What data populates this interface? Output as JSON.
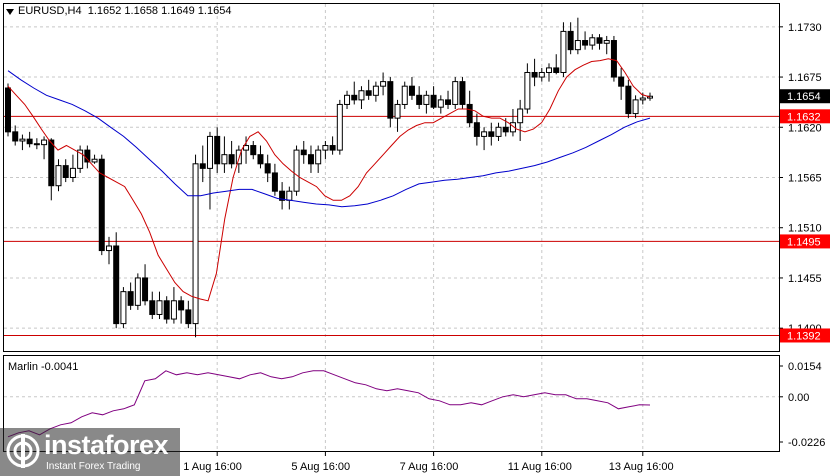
{
  "header": {
    "symbol_label": "EURUSD,H4",
    "ohlc": "1.1652 1.1658 1.1649 1.1654"
  },
  "indicator": {
    "label": "Marlin -0.0041"
  },
  "price_axis_ticks": [
    "1.1730",
    "1.1675",
    "1.1620",
    "1.1565",
    "1.1510",
    "1.1455",
    "1.1400"
  ],
  "indicator_axis_ticks": [
    "0.0154",
    "0.00",
    "-0.0226"
  ],
  "time_labels": [
    "1 Aug 16:00",
    "5 Aug 16:00",
    "7 Aug 16:00",
    "11 Aug 16:00",
    "13 Aug 16:00"
  ],
  "level_tags": {
    "current": "1.1654",
    "l1632": "1.1632",
    "l1495": "1.1495",
    "l1392": "1.1392"
  },
  "watermark": {
    "name": "instaforex",
    "tagline": "Instant Forex Trading"
  },
  "colors": {
    "level_line": "#cc0000",
    "level_tag_bg": "#ff0000",
    "current_tag_bg": "#000000",
    "slow_ma": "#0000cc",
    "fast_ma": "#cc0000",
    "oscillator": "#800080",
    "grid": "#c8c8c8"
  },
  "chart_data": [
    {
      "type": "candlestick",
      "symbol": "EURUSD",
      "timeframe": "H4",
      "ylim": [
        1.1375,
        1.1755
      ],
      "horizontal_levels": [
        1.1632,
        1.1495,
        1.1392
      ],
      "last_price": 1.1654,
      "candles": [
        [
          1.1663,
          1.1668,
          1.161,
          1.1615
        ],
        [
          1.1615,
          1.1622,
          1.16,
          1.1605
        ],
        [
          1.1605,
          1.1612,
          1.1595,
          1.1607
        ],
        [
          1.1607,
          1.1615,
          1.1598,
          1.1602
        ],
        [
          1.1602,
          1.1608,
          1.1596,
          1.1601
        ],
        [
          1.1601,
          1.161,
          1.1585,
          1.1606
        ],
        [
          1.1606,
          1.1608,
          1.154,
          1.1556
        ],
        [
          1.1556,
          1.1585,
          1.155,
          1.1578
        ],
        [
          1.1578,
          1.1585,
          1.156,
          1.1565
        ],
        [
          1.1565,
          1.159,
          1.156,
          1.1575
        ],
        [
          1.1575,
          1.16,
          1.157,
          1.1595
        ],
        [
          1.1595,
          1.16,
          1.1575,
          1.1582
        ],
        [
          1.1582,
          1.159,
          1.158,
          1.1585
        ],
        [
          1.1585,
          1.159,
          1.148,
          1.1485
        ],
        [
          1.1485,
          1.15,
          1.147,
          1.149
        ],
        [
          1.149,
          1.1505,
          1.14,
          1.1405
        ],
        [
          1.1405,
          1.1445,
          1.14,
          1.144
        ],
        [
          1.144,
          1.145,
          1.142,
          1.1425
        ],
        [
          1.1425,
          1.146,
          1.142,
          1.1455
        ],
        [
          1.1455,
          1.147,
          1.1425,
          1.143
        ],
        [
          1.143,
          1.144,
          1.141,
          1.1415
        ],
        [
          1.1415,
          1.144,
          1.141,
          1.143
        ],
        [
          1.143,
          1.1435,
          1.1405,
          1.141
        ],
        [
          1.141,
          1.1445,
          1.1405,
          1.143
        ],
        [
          1.143,
          1.1435,
          1.1405,
          1.142
        ],
        [
          1.142,
          1.143,
          1.14,
          1.1405
        ],
        [
          1.1405,
          1.159,
          1.139,
          1.158
        ],
        [
          1.158,
          1.16,
          1.156,
          1.1575
        ],
        [
          1.1575,
          1.1615,
          1.153,
          1.161
        ],
        [
          1.161,
          1.162,
          1.157,
          1.158
        ],
        [
          1.158,
          1.161,
          1.157,
          1.159
        ],
        [
          1.159,
          1.1605,
          1.1575,
          1.158
        ],
        [
          1.158,
          1.16,
          1.157,
          1.1595
        ],
        [
          1.1595,
          1.161,
          1.158,
          1.16
        ],
        [
          1.16,
          1.1605,
          1.1585,
          1.159
        ],
        [
          1.159,
          1.16,
          1.1575,
          1.158
        ],
        [
          1.158,
          1.159,
          1.156,
          1.157
        ],
        [
          1.157,
          1.158,
          1.1545,
          1.155
        ],
        [
          1.155,
          1.156,
          1.153,
          1.154
        ],
        [
          1.154,
          1.1555,
          1.153,
          1.155
        ],
        [
          1.155,
          1.16,
          1.1545,
          1.1595
        ],
        [
          1.1595,
          1.1605,
          1.158,
          1.159
        ],
        [
          1.159,
          1.16,
          1.157,
          1.158
        ],
        [
          1.158,
          1.16,
          1.157,
          1.1595
        ],
        [
          1.1595,
          1.1605,
          1.1585,
          1.16
        ],
        [
          1.16,
          1.161,
          1.159,
          1.1595
        ],
        [
          1.1595,
          1.165,
          1.159,
          1.1645
        ],
        [
          1.1645,
          1.166,
          1.164,
          1.1655
        ],
        [
          1.1655,
          1.167,
          1.1645,
          1.165
        ],
        [
          1.165,
          1.1665,
          1.164,
          1.166
        ],
        [
          1.166,
          1.1672,
          1.165,
          1.1655
        ],
        [
          1.1655,
          1.167,
          1.1648,
          1.1665
        ],
        [
          1.1665,
          1.168,
          1.1655,
          1.167
        ],
        [
          1.167,
          1.1675,
          1.162,
          1.163
        ],
        [
          1.163,
          1.165,
          1.1615,
          1.1645
        ],
        [
          1.1645,
          1.167,
          1.164,
          1.1665
        ],
        [
          1.1665,
          1.1675,
          1.165,
          1.1655
        ],
        [
          1.1655,
          1.1665,
          1.164,
          1.1645
        ],
        [
          1.1645,
          1.166,
          1.1635,
          1.1655
        ],
        [
          1.1655,
          1.1665,
          1.164,
          1.1642
        ],
        [
          1.1642,
          1.1655,
          1.1635,
          1.165
        ],
        [
          1.165,
          1.166,
          1.164,
          1.1645
        ],
        [
          1.1645,
          1.1675,
          1.164,
          1.167
        ],
        [
          1.167,
          1.1675,
          1.164,
          1.1645
        ],
        [
          1.1645,
          1.166,
          1.162,
          1.1625
        ],
        [
          1.1625,
          1.1635,
          1.16,
          1.161
        ],
        [
          1.161,
          1.162,
          1.1595,
          1.1615
        ],
        [
          1.1615,
          1.1625,
          1.16,
          1.161
        ],
        [
          1.161,
          1.1625,
          1.1605,
          1.162
        ],
        [
          1.162,
          1.163,
          1.161,
          1.1615
        ],
        [
          1.1615,
          1.164,
          1.161,
          1.1625
        ],
        [
          1.1625,
          1.165,
          1.1605,
          1.164
        ],
        [
          1.164,
          1.169,
          1.1635,
          1.168
        ],
        [
          1.168,
          1.1695,
          1.1665,
          1.1675
        ],
        [
          1.1675,
          1.1685,
          1.167,
          1.168
        ],
        [
          1.168,
          1.169,
          1.167,
          1.1685
        ],
        [
          1.1685,
          1.17,
          1.1678,
          1.168
        ],
        [
          1.168,
          1.1735,
          1.1675,
          1.1725
        ],
        [
          1.1725,
          1.1735,
          1.17,
          1.1705
        ],
        [
          1.1705,
          1.174,
          1.17,
          1.1715
        ],
        [
          1.1715,
          1.1725,
          1.1705,
          1.171
        ],
        [
          1.171,
          1.1722,
          1.1705,
          1.1718
        ],
        [
          1.1718,
          1.1722,
          1.1705,
          1.1712
        ],
        [
          1.1712,
          1.172,
          1.17,
          1.1715
        ],
        [
          1.1715,
          1.172,
          1.167,
          1.1675
        ],
        [
          1.1675,
          1.1685,
          1.165,
          1.1665
        ],
        [
          1.1665,
          1.1672,
          1.163,
          1.1635
        ],
        [
          1.1635,
          1.1655,
          1.163,
          1.165
        ],
        [
          1.165,
          1.1658,
          1.1645,
          1.1652
        ],
        [
          1.1652,
          1.1658,
          1.1649,
          1.1654
        ]
      ],
      "ma_fast": [
        1.1665,
        1.1655,
        1.1645,
        1.1632,
        1.1618,
        1.1605,
        1.1595,
        1.16,
        1.1595,
        1.159,
        1.158,
        1.157,
        1.1565,
        1.156,
        1.1555,
        1.154,
        1.1525,
        1.1505,
        1.148,
        1.1465,
        1.145,
        1.144,
        1.1435,
        1.1432,
        1.143,
        1.146,
        1.152,
        1.1565,
        1.1595,
        1.161,
        1.1615,
        1.1605,
        1.159,
        1.158,
        1.1572,
        1.1565,
        1.156,
        1.1555,
        1.1545,
        1.154,
        1.154,
        1.1545,
        1.1555,
        1.157,
        1.158,
        1.159,
        1.16,
        1.161,
        1.1617,
        1.1622,
        1.1625,
        1.1625,
        1.163,
        1.1635,
        1.164,
        1.164,
        1.1638,
        1.1632,
        1.163,
        1.163,
        1.1625,
        1.1618,
        1.1615,
        1.1618,
        1.1625,
        1.164,
        1.166,
        1.1675,
        1.1683,
        1.1688,
        1.1692,
        1.1693,
        1.1695,
        1.1693,
        1.168,
        1.1665,
        1.1656,
        1.1653
      ],
      "ma_slow": [
        1.1682,
        1.1672,
        1.1663,
        1.1655,
        1.165,
        1.1645,
        1.1638,
        1.163,
        1.162,
        1.161,
        1.1598,
        1.1585,
        1.1572,
        1.1558,
        1.1545,
        1.1545,
        1.1548,
        1.155,
        1.1552,
        1.1552,
        1.1547,
        1.1542,
        1.154,
        1.1538,
        1.1536,
        1.1535,
        1.1533,
        1.1534,
        1.1536,
        1.154,
        1.1545,
        1.1552,
        1.1558,
        1.156,
        1.1562,
        1.1563,
        1.1565,
        1.1567,
        1.157,
        1.1572,
        1.1575,
        1.1578,
        1.1582,
        1.1587,
        1.1592,
        1.1598,
        1.1605,
        1.1612,
        1.162,
        1.1626,
        1.163
      ],
      "oscillator": {
        "name": "Marlin",
        "last_value": -0.0041,
        "ylim": [
          -0.0226,
          0.0154
        ],
        "values": [
          -0.02,
          -0.018,
          -0.017,
          -0.019,
          -0.016,
          -0.014,
          -0.013,
          -0.01,
          -0.008,
          -0.009,
          -0.007,
          -0.006,
          -0.004,
          0.008,
          0.009,
          0.013,
          0.011,
          0.012,
          0.011,
          0.012,
          0.011,
          0.01,
          0.009,
          0.011,
          0.012,
          0.01,
          0.009,
          0.01,
          0.012,
          0.013,
          0.013,
          0.011,
          0.009,
          0.007,
          0.006,
          0.004,
          0.003,
          0.004,
          0.003,
          0.002,
          -0.001,
          -0.002,
          -0.004,
          -0.004,
          -0.003,
          -0.004,
          -0.002,
          0.0,
          0.001,
          0.0,
          0.001,
          0.002,
          0.001,
          0.001,
          -0.001,
          -0.001,
          -0.002,
          -0.003,
          -0.006,
          -0.005,
          -0.004,
          -0.0041
        ]
      }
    }
  ]
}
